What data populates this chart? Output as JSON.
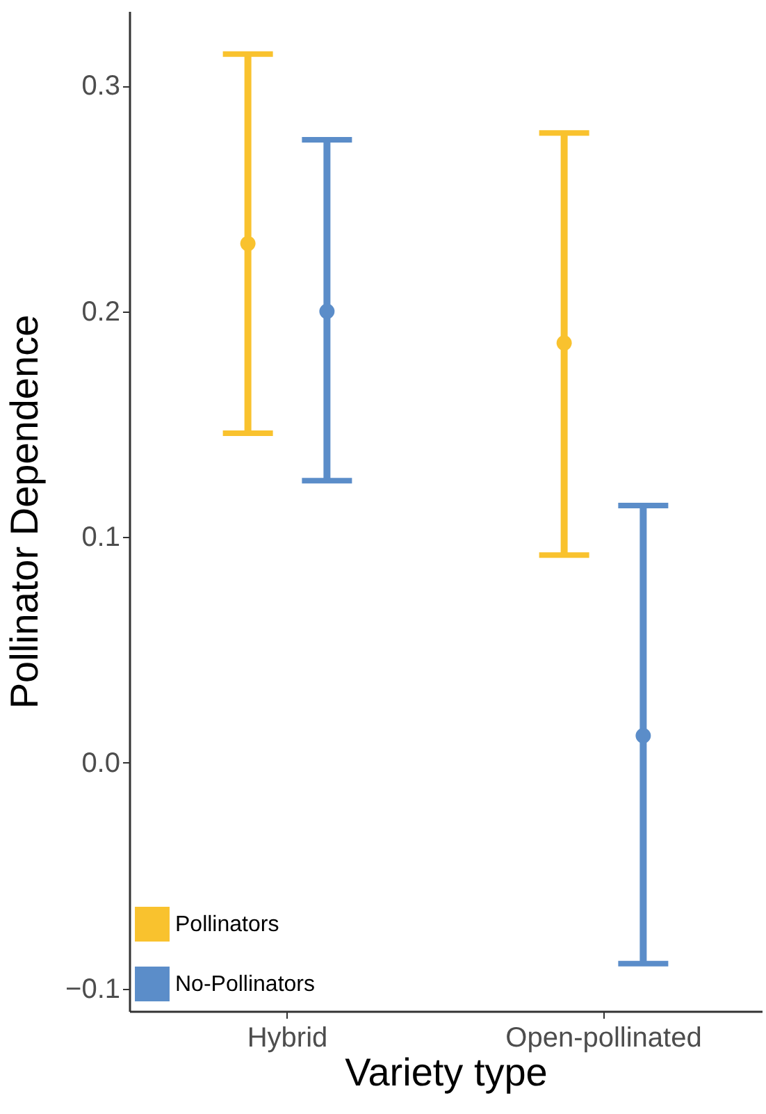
{
  "chart_data": {
    "type": "scatter",
    "xlabel": "Variety type",
    "ylabel": "Pollinator Dependence",
    "categories": [
      "Hybrid",
      "Open-pollinated"
    ],
    "series": [
      {
        "name": "Pollinators",
        "color": "#f9c22e",
        "values": [
          0.23,
          0.186
        ],
        "errors": [
          [
            0.146,
            0.314
          ],
          [
            0.092,
            0.279
          ]
        ]
      },
      {
        "name": "No-Pollinators",
        "color": "#5b8dc9",
        "values": [
          0.2,
          0.012
        ],
        "errors": [
          [
            0.125,
            0.276
          ],
          [
            -0.089,
            0.114
          ]
        ]
      }
    ],
    "ylim": [
      -0.11,
      0.333
    ],
    "yticks": [
      {
        "value": -0.1,
        "label": "−0.1"
      },
      {
        "value": 0,
        "label": "0.0"
      },
      {
        "value": 0.1,
        "label": "0.1"
      },
      {
        "value": 0.2,
        "label": "0.2"
      },
      {
        "value": 0.3,
        "label": "0.3"
      }
    ],
    "marker": "circle",
    "grid": false,
    "legend": "bottom left"
  }
}
